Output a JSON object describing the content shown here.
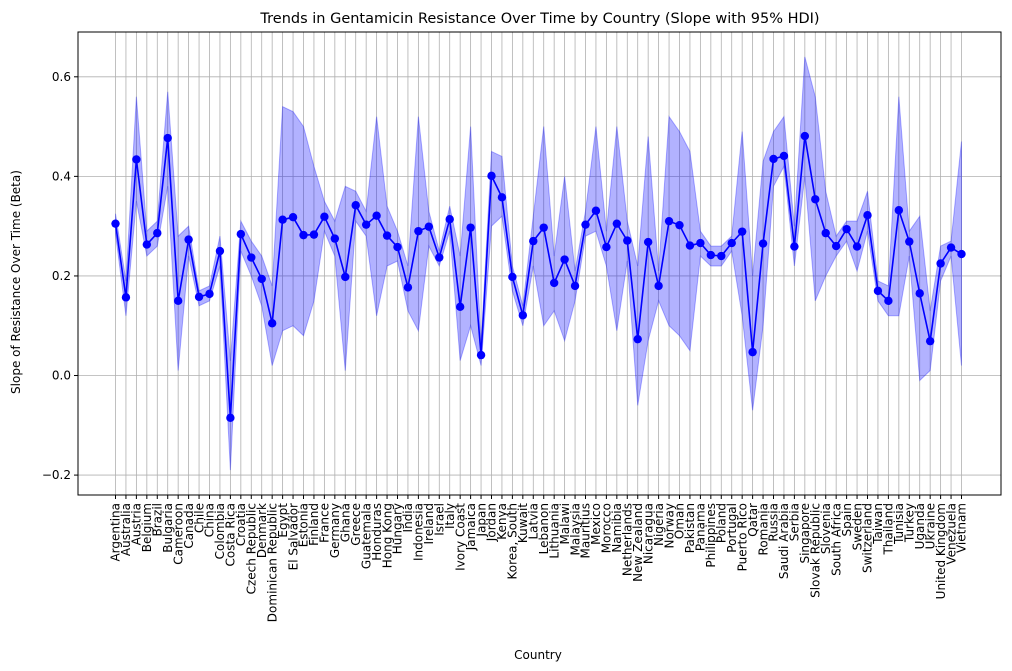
{
  "chart_data": {
    "type": "line",
    "title": "Trends in Gentamicin Resistance Over Time by Country (Slope with 95% HDI)",
    "xlabel": "Country",
    "ylabel": "Slope of Resistance Over Time (Beta)",
    "ylim": [
      -0.24,
      0.69
    ],
    "yticks": [
      -0.2,
      0.0,
      0.2,
      0.4,
      0.6
    ],
    "ytick_labels": [
      "−0.2",
      "0.0",
      "0.2",
      "0.4",
      "0.6"
    ],
    "grid": true,
    "line_color": "#0000ff",
    "band_color": "#0000ff",
    "categories": [
      "Argentina",
      "Australia",
      "Austria",
      "Belgium",
      "Brazil",
      "Bulgaria",
      "Cameroon",
      "Canada",
      "Chile",
      "China",
      "Colombia",
      "Costa Rica",
      "Croatia",
      "Czech Republic",
      "Denmark",
      "Dominican Republic",
      "Egypt",
      "El Salvador",
      "Estonia",
      "Finland",
      "France",
      "Germany",
      "Ghana",
      "Greece",
      "Guatemala",
      "Honduras",
      "Hong Kong",
      "Hungary",
      "India",
      "Indonesia",
      "Ireland",
      "Israel",
      "Italy",
      "Ivory Coast",
      "Jamaica",
      "Japan",
      "Jordan",
      "Kenya",
      "Korea, South",
      "Kuwait",
      "Latvia",
      "Lebanon",
      "Lithuania",
      "Malawi",
      "Malaysia",
      "Mauritius",
      "Mexico",
      "Morocco",
      "Namibia",
      "Netherlands",
      "New Zealand",
      "Nicaragua",
      "Nigeria",
      "Norway",
      "Oman",
      "Pakistan",
      "Panama",
      "Philippines",
      "Poland",
      "Portugal",
      "Puerto Rico",
      "Qatar",
      "Romania",
      "Russia",
      "Saudi Arabia",
      "Serbia",
      "Singapore",
      "Slovak Republic",
      "Slovenia",
      "South Africa",
      "Spain",
      "Sweden",
      "Switzerland",
      "Taiwan",
      "Thailand",
      "Tunisia",
      "Turkey",
      "Uganda",
      "Ukraine",
      "United Kingdom",
      "Venezuela",
      "Vietnam"
    ],
    "values": [
      0.305,
      0.157,
      0.434,
      0.263,
      0.286,
      0.477,
      0.15,
      0.273,
      0.158,
      0.164,
      0.25,
      -0.085,
      0.284,
      0.237,
      0.194,
      0.105,
      0.313,
      0.318,
      0.282,
      0.283,
      0.319,
      0.275,
      0.198,
      0.342,
      0.303,
      0.321,
      0.281,
      0.258,
      0.177,
      0.29,
      0.299,
      0.237,
      0.314,
      0.138,
      0.297,
      0.041,
      0.401,
      0.358,
      0.198,
      0.121,
      0.27,
      0.297,
      0.186,
      0.233,
      0.18,
      0.303,
      0.331,
      0.258,
      0.305,
      0.271,
      0.073,
      0.268,
      0.18,
      0.31,
      0.302,
      0.261,
      0.266,
      0.242,
      0.24,
      0.266,
      0.289,
      0.047,
      0.265,
      0.435,
      0.441,
      0.259,
      0.481,
      0.354,
      0.286,
      0.26,
      0.294,
      0.259,
      0.322,
      0.17,
      0.15,
      0.332,
      0.269,
      0.165,
      0.069,
      0.225,
      0.257,
      0.244
    ],
    "hdi_lower": [
      0.285,
      0.12,
      0.35,
      0.24,
      0.26,
      0.38,
      0.01,
      0.24,
      0.14,
      0.15,
      0.22,
      -0.19,
      0.25,
      0.2,
      0.14,
      0.02,
      0.09,
      0.1,
      0.08,
      0.15,
      0.29,
      0.24,
      0.01,
      0.31,
      0.28,
      0.12,
      0.22,
      0.23,
      0.13,
      0.09,
      0.26,
      0.22,
      0.29,
      0.03,
      0.1,
      0.02,
      0.3,
      0.32,
      0.17,
      0.1,
      0.22,
      0.1,
      0.13,
      0.07,
      0.15,
      0.28,
      0.29,
      0.22,
      0.09,
      0.23,
      -0.06,
      0.07,
      0.15,
      0.1,
      0.08,
      0.05,
      0.24,
      0.22,
      0.22,
      0.25,
      0.12,
      -0.07,
      0.1,
      0.38,
      0.42,
      0.22,
      0.4,
      0.15,
      0.2,
      0.24,
      0.27,
      0.21,
      0.29,
      0.15,
      0.12,
      0.12,
      0.24,
      -0.01,
      0.01,
      0.19,
      0.24,
      0.02
    ],
    "hdi_upper": [
      0.325,
      0.19,
      0.56,
      0.29,
      0.31,
      0.57,
      0.28,
      0.3,
      0.17,
      0.18,
      0.28,
      0.03,
      0.31,
      0.27,
      0.24,
      0.18,
      0.54,
      0.53,
      0.5,
      0.42,
      0.35,
      0.31,
      0.38,
      0.37,
      0.33,
      0.52,
      0.34,
      0.29,
      0.22,
      0.52,
      0.33,
      0.25,
      0.34,
      0.24,
      0.5,
      0.06,
      0.45,
      0.44,
      0.22,
      0.14,
      0.32,
      0.5,
      0.24,
      0.4,
      0.21,
      0.33,
      0.5,
      0.29,
      0.5,
      0.31,
      0.22,
      0.48,
      0.21,
      0.52,
      0.49,
      0.45,
      0.29,
      0.26,
      0.26,
      0.28,
      0.49,
      0.2,
      0.43,
      0.49,
      0.52,
      0.3,
      0.64,
      0.56,
      0.37,
      0.28,
      0.31,
      0.31,
      0.37,
      0.19,
      0.18,
      0.56,
      0.29,
      0.32,
      0.13,
      0.26,
      0.27,
      0.47
    ]
  }
}
